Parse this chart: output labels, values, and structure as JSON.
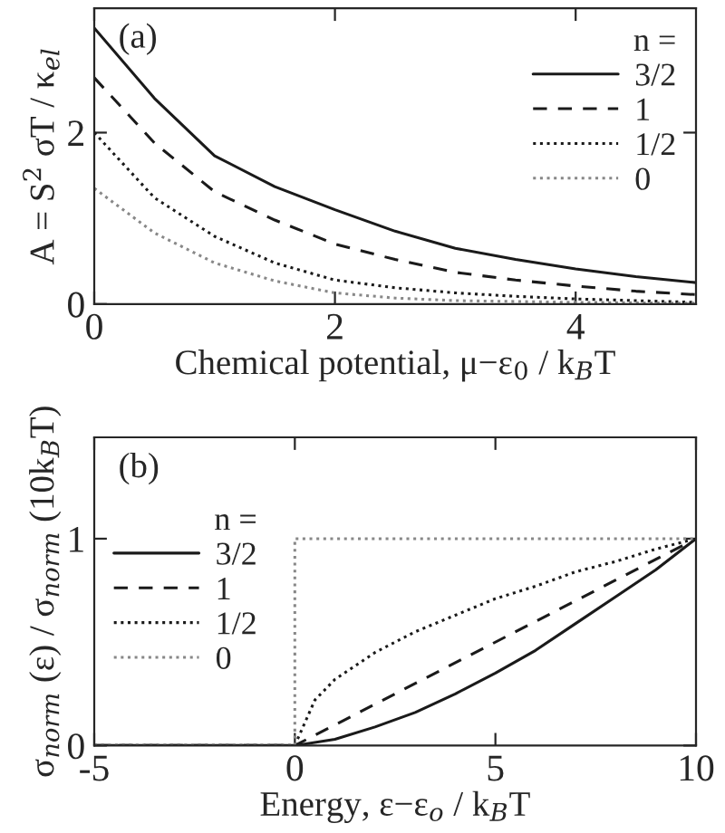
{
  "chart_data": [
    {
      "type": "line",
      "annotations": [
        "(a)"
      ],
      "xlabel": "Chemical potential, μ−ε$_{0}$ / k$_{B}$T",
      "ylabel": "A = S$^{2}$ σT / κ$_{el}$",
      "legend_title": "n =",
      "legend": "top right",
      "xlim": [
        0,
        5
      ],
      "ylim": [
        0,
        3.45
      ],
      "xticks": [
        0,
        2,
        4
      ],
      "yticks": [
        0,
        2
      ],
      "grid": false,
      "series": [
        {
          "name": "3/2",
          "color": "#1a1a1a",
          "line_style": "solid",
          "x": [
            0,
            0.5,
            1,
            1.5,
            2,
            2.5,
            3,
            3.5,
            4,
            4.5,
            5
          ],
          "values": [
            3.22,
            2.4,
            1.73,
            1.37,
            1.1,
            0.85,
            0.65,
            0.52,
            0.41,
            0.32,
            0.25
          ]
        },
        {
          "name": "1",
          "color": "#1a1a1a",
          "line_style": "dashed",
          "x": [
            0,
            0.5,
            1,
            1.5,
            2,
            2.5,
            3,
            3.5,
            4,
            4.5,
            5
          ],
          "values": [
            2.64,
            1.88,
            1.31,
            0.98,
            0.7,
            0.52,
            0.37,
            0.28,
            0.21,
            0.15,
            0.11
          ]
        },
        {
          "name": "1/2",
          "color": "#1a1a1a",
          "line_style": "dotted",
          "x": [
            0,
            0.5,
            1,
            1.5,
            2,
            2.5,
            3,
            3.5,
            4,
            4.5,
            5
          ],
          "values": [
            2.0,
            1.24,
            0.79,
            0.48,
            0.28,
            0.19,
            0.13,
            0.09,
            0.06,
            0.04,
            0.02
          ]
        },
        {
          "name": "0",
          "color": "#888888",
          "line_style": "dotted",
          "x": [
            0,
            0.5,
            1,
            1.5,
            2,
            2.5,
            3,
            4,
            5
          ],
          "values": [
            1.35,
            0.83,
            0.48,
            0.27,
            0.13,
            0.07,
            0.04,
            0.02,
            0.01
          ]
        }
      ]
    },
    {
      "type": "line",
      "annotations": [
        "(b)"
      ],
      "xlabel": "Energy, ε−ε$_{o}$ / k$_{B}$T",
      "ylabel": "σ$_{norm}$ (ε) / σ$_{norm}$ (10k$_{B}$T)",
      "legend_title": "n =",
      "legend": "left",
      "xlim": [
        -5,
        10
      ],
      "ylim": [
        0,
        1.49
      ],
      "xticks": [
        -5,
        0,
        5,
        10
      ],
      "yticks": [
        0,
        1
      ],
      "grid": false,
      "series": [
        {
          "name": "3/2",
          "color": "#1a1a1a",
          "line_style": "solid",
          "x": [
            -5,
            0,
            1,
            2,
            3,
            4,
            5,
            6,
            7,
            8,
            9,
            10
          ],
          "values": [
            0,
            0,
            0.03,
            0.09,
            0.16,
            0.25,
            0.35,
            0.46,
            0.59,
            0.72,
            0.85,
            1
          ]
        },
        {
          "name": "1",
          "color": "#1a1a1a",
          "line_style": "dashed",
          "x": [
            -5,
            0,
            10
          ],
          "values": [
            0,
            0,
            1
          ]
        },
        {
          "name": "1/2",
          "color": "#1a1a1a",
          "line_style": "dotted",
          "x": [
            -5,
            0,
            0.5,
            1,
            2,
            3,
            4,
            5,
            6,
            7,
            8,
            9,
            10
          ],
          "values": [
            0,
            0,
            0.22,
            0.32,
            0.45,
            0.55,
            0.63,
            0.71,
            0.77,
            0.84,
            0.89,
            0.95,
            1
          ]
        },
        {
          "name": "0",
          "color": "#888888",
          "line_style": "dotted",
          "x": [
            -5,
            0,
            0,
            10
          ],
          "values": [
            0,
            0,
            1,
            1
          ]
        }
      ]
    }
  ]
}
